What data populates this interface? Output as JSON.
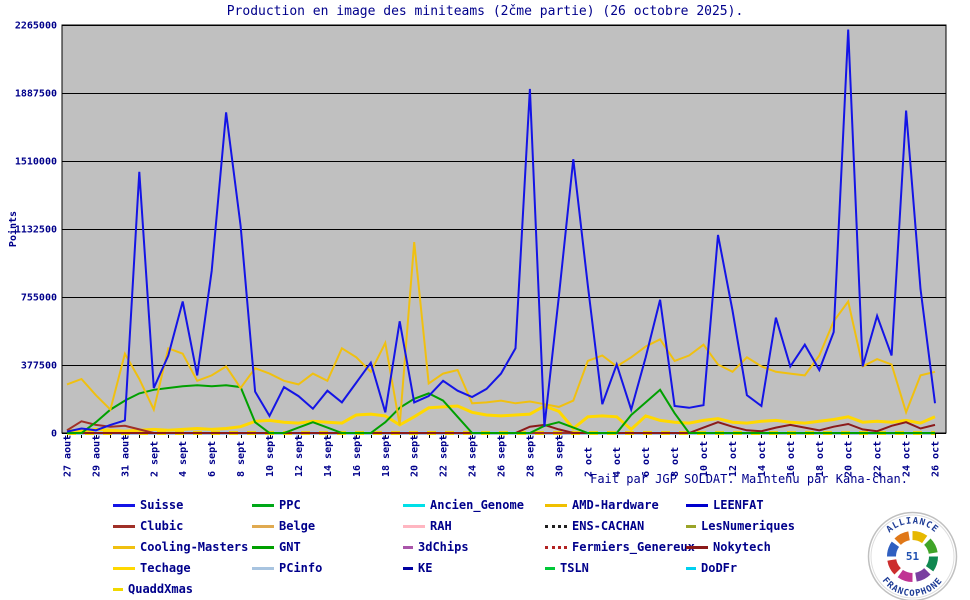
{
  "title": "Production en image des miniteams (2čme partie) (26 octobre 2025).",
  "footer": "Fait par JGP SOLDAT. Maintenu par Kana-chan.",
  "colors": {
    "background": "#ffffff",
    "plot_background": "#c0c0c0",
    "grid": "#000000",
    "label_text": "#00008b"
  },
  "logo": {
    "top_text": "ALLIANCE",
    "bottom_text": "FRANCOPHONE",
    "center_text": "51"
  },
  "chart_data": {
    "type": "line",
    "title": "Production en image des miniteams (2čme partie) (26 octobre 2025).",
    "xlabel": "",
    "ylabel": "Points",
    "ylim": [
      0,
      2265000
    ],
    "yticks": [
      0,
      377500,
      755000,
      1132500,
      1510000,
      1887500,
      2265000
    ],
    "grid": "horizontal-black-on-gray",
    "legend_position": "bottom",
    "num_points": 61,
    "x_tick_labels": [
      "27 aout",
      "29 aout",
      "31 aout",
      "2 sept",
      "4 sept",
      "6 sept",
      "8 sept",
      "10 sept",
      "12 sept",
      "14 sept",
      "16 sept",
      "18 sept",
      "20 sept",
      "22 sept",
      "24 sept",
      "26 sept",
      "28 sept",
      "30 sept",
      "2 oct",
      "4 oct",
      "6 oct",
      "8 oct",
      "10 oct",
      "12 oct",
      "14 oct",
      "16 oct",
      "18 oct",
      "20 oct",
      "22 oct",
      "24 oct",
      "26 oct"
    ],
    "series": [
      {
        "name": "Ancien_Genome",
        "color": "#00e0e8",
        "style": "solid",
        "width": 2
      },
      {
        "name": "RAH",
        "color": "#ffb6c1",
        "style": "solid",
        "width": 2
      },
      {
        "name": "3dChips",
        "color": "#aa55aa",
        "style": "dash",
        "width": 2
      },
      {
        "name": "KE",
        "color": "#0000a0",
        "style": "dash",
        "width": 2
      },
      {
        "name": "AMD-Hardware",
        "color": "#f0c000",
        "style": "solid",
        "width": 2
      },
      {
        "name": "ENS-CACHAN",
        "color": "#202020",
        "style": "dot",
        "width": 2
      },
      {
        "name": "Fermiers_Genereux",
        "color": "#b22222",
        "style": "dot",
        "width": 2
      },
      {
        "name": "TSLN",
        "color": "#00c838",
        "style": "dash",
        "width": 2
      },
      {
        "name": "LEENFAT",
        "color": "#0000cd",
        "style": "solid",
        "width": 2
      },
      {
        "name": "LesNumeriques",
        "color": "#9aa428",
        "style": "dash",
        "width": 2
      },
      {
        "name": "DoDFr",
        "color": "#00d0f0",
        "style": "dash",
        "width": 2
      },
      {
        "name": "Belge",
        "color": "#e0aa50",
        "style": "solid",
        "width": 2
      },
      {
        "name": "PPC",
        "color": "#00a818",
        "style": "solid",
        "width": 2
      },
      {
        "name": "PCinfo",
        "color": "#a8c4e0",
        "style": "solid",
        "width": 4
      },
      {
        "name": "QuaddXmas",
        "color": "#f0d800",
        "style": "dash",
        "width": 4,
        "dasharray": "9 9"
      },
      {
        "name": "Techage",
        "color": "#ffd800",
        "style": "solid",
        "width": 3,
        "values": [
          15000,
          10000,
          20000,
          15000,
          10000,
          15000,
          20000,
          15000,
          20000,
          25000,
          20000,
          25000,
          35000,
          65000,
          70000,
          60000,
          55000,
          65000,
          60000,
          55000,
          100000,
          105000,
          95000,
          45000,
          90000,
          140000,
          145000,
          150000,
          115000,
          100000,
          95000,
          100000,
          105000,
          150000,
          120000,
          25000,
          90000,
          95000,
          90000,
          20000,
          95000,
          70000,
          60000,
          55000,
          70000,
          80000,
          60000,
          55000,
          65000,
          70000,
          60000,
          55000,
          65000,
          75000,
          90000,
          60000,
          65000,
          60000,
          70000,
          55000,
          90000
        ]
      },
      {
        "name": "Clubic",
        "color": "#a03028",
        "style": "solid",
        "width": 2,
        "values": [
          15000,
          65000,
          45000,
          35000,
          40000,
          20000,
          0,
          0,
          0,
          0,
          0,
          0,
          0,
          0,
          0,
          0,
          0,
          0,
          0,
          0,
          0,
          0,
          0,
          0,
          0,
          0,
          0,
          0,
          0,
          0,
          0,
          0,
          0,
          0,
          0,
          0,
          0,
          0,
          0,
          0,
          0,
          0,
          0,
          0,
          0,
          0,
          0,
          0,
          0,
          0,
          0,
          0,
          0,
          0,
          0,
          0,
          0,
          0,
          0,
          0,
          0
        ]
      },
      {
        "name": "Nokytech",
        "color": "#8b1a1a",
        "style": "solid",
        "width": 2,
        "values": [
          0,
          0,
          0,
          0,
          0,
          0,
          0,
          0,
          0,
          0,
          0,
          0,
          0,
          0,
          0,
          0,
          0,
          0,
          0,
          0,
          0,
          0,
          0,
          0,
          0,
          0,
          0,
          0,
          0,
          0,
          0,
          0,
          35000,
          45000,
          20000,
          0,
          0,
          0,
          0,
          0,
          0,
          0,
          0,
          0,
          30000,
          60000,
          35000,
          15000,
          10000,
          30000,
          45000,
          30000,
          15000,
          35000,
          50000,
          20000,
          10000,
          40000,
          60000,
          25000,
          45000
        ]
      },
      {
        "name": "GNT",
        "color": "#00a000",
        "style": "solid",
        "width": 2,
        "values": [
          0,
          0,
          60000,
          130000,
          180000,
          220000,
          240000,
          250000,
          260000,
          265000,
          260000,
          265000,
          255000,
          60000,
          0,
          0,
          30000,
          60000,
          30000,
          0,
          0,
          0,
          60000,
          140000,
          190000,
          220000,
          180000,
          90000,
          0,
          0,
          0,
          0,
          0,
          40000,
          60000,
          30000,
          0,
          0,
          0,
          100000,
          170000,
          240000,
          110000,
          0,
          0,
          0,
          0,
          0,
          0,
          0,
          0,
          0,
          0,
          0,
          0,
          0,
          0,
          0,
          0,
          0,
          0
        ]
      },
      {
        "name": "Cooling-Masters",
        "color": "#f0c010",
        "style": "solid",
        "width": 2,
        "values": [
          270000,
          300000,
          210000,
          130000,
          440000,
          300000,
          130000,
          470000,
          440000,
          290000,
          320000,
          370000,
          250000,
          360000,
          330000,
          290000,
          270000,
          330000,
          290000,
          470000,
          420000,
          340000,
          500000,
          45000,
          1060000,
          275000,
          330000,
          350000,
          165000,
          170000,
          180000,
          165000,
          175000,
          160000,
          145000,
          180000,
          400000,
          430000,
          370000,
          420000,
          480000,
          520000,
          400000,
          430000,
          490000,
          380000,
          340000,
          420000,
          370000,
          340000,
          330000,
          320000,
          430000,
          620000,
          730000,
          370000,
          410000,
          380000,
          115000,
          320000,
          340000
        ]
      },
      {
        "name": "Suisse",
        "color": "#1414e6",
        "style": "solid",
        "width": 2,
        "values": [
          8000,
          25000,
          15000,
          45000,
          70000,
          1450000,
          250000,
          430000,
          730000,
          320000,
          900000,
          1780000,
          1150000,
          230000,
          95000,
          255000,
          205000,
          135000,
          235000,
          170000,
          280000,
          390000,
          115000,
          620000,
          170000,
          205000,
          290000,
          235000,
          200000,
          245000,
          330000,
          470000,
          1910000,
          35000,
          760000,
          1520000,
          820000,
          160000,
          380000,
          130000,
          420000,
          740000,
          150000,
          140000,
          155000,
          1100000,
          680000,
          210000,
          150000,
          640000,
          370000,
          490000,
          350000,
          560000,
          2240000,
          370000,
          650000,
          430000,
          1790000,
          800000,
          165000
        ]
      }
    ]
  },
  "legend": {
    "columns": [
      [
        "Suisse",
        "Clubic",
        "Cooling-Masters",
        "Techage",
        "QuaddXmas"
      ],
      [
        "PPC",
        "Belge",
        "GNT",
        "PCinfo"
      ],
      [
        "Ancien_Genome",
        "RAH",
        "3dChips",
        "KE"
      ],
      [
        "AMD-Hardware",
        "ENS-CACHAN",
        "Fermiers_Genereux",
        "TSLN"
      ],
      [
        "LEENFAT",
        "LesNumeriques",
        "Nokytech",
        "DoDFr"
      ]
    ]
  }
}
